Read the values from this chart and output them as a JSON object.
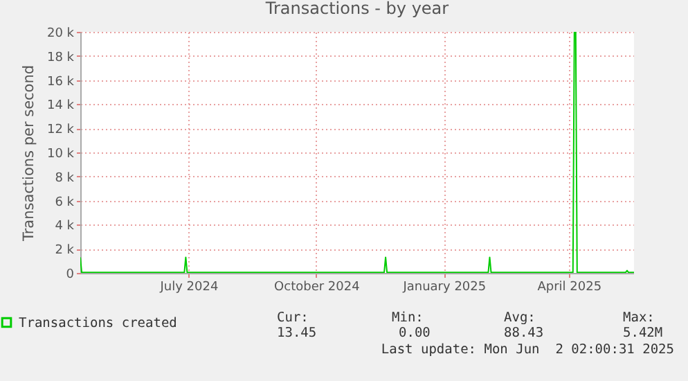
{
  "chart_data": {
    "type": "line",
    "title": "Transactions - by year",
    "ylabel": "Transactions per second",
    "x": [
      "2024-04-29",
      "2024-04-30",
      "2024-07-13",
      "2024-07-14",
      "2024-07-15",
      "2024-12-04",
      "2024-12-05",
      "2024-12-06",
      "2025-02-17",
      "2025-02-18",
      "2025-02-19",
      "2025-04-19",
      "2025-04-20",
      "2025-04-21",
      "2025-04-22",
      "2025-05-27",
      "2025-05-28",
      "2025-05-29",
      "2025-06-02"
    ],
    "series": [
      {
        "name": "Transactions created",
        "color": "#00cc00",
        "values": [
          1300,
          50,
          50,
          1300,
          50,
          50,
          1300,
          50,
          50,
          1300,
          50,
          50,
          20000,
          20000,
          50,
          50,
          200,
          50,
          50
        ]
      }
    ],
    "xlim": [
      "2024-04-29",
      "2025-06-02"
    ],
    "xticks": [
      {
        "value": "2024-07-16",
        "label": "July 2024"
      },
      {
        "value": "2024-10-16",
        "label": "October 2024"
      },
      {
        "value": "2025-01-16",
        "label": "January 2025"
      },
      {
        "value": "2025-04-16",
        "label": "April 2025"
      }
    ],
    "ylim": [
      0,
      20000
    ],
    "yticks": [
      {
        "value": 0,
        "label": "0"
      },
      {
        "value": 2000,
        "label": "2 k"
      },
      {
        "value": 4000,
        "label": "4 k"
      },
      {
        "value": 6000,
        "label": "6 k"
      },
      {
        "value": 8000,
        "label": "8 k"
      },
      {
        "value": 10000,
        "label": "10 k"
      },
      {
        "value": 12000,
        "label": "12 k"
      },
      {
        "value": 14000,
        "label": "14 k"
      },
      {
        "value": 16000,
        "label": "16 k"
      },
      {
        "value": 18000,
        "label": "18 k"
      },
      {
        "value": 20000,
        "label": "20 k"
      }
    ],
    "grid": true,
    "legend": "bottom left",
    "annotations": [
      "Cur:",
      "Min:",
      "Avg:",
      "Max:",
      "13.45",
      "0.00",
      "88.43",
      "5.42M",
      "Last update: Mon Jun  2 02:00:31 2025"
    ]
  }
}
